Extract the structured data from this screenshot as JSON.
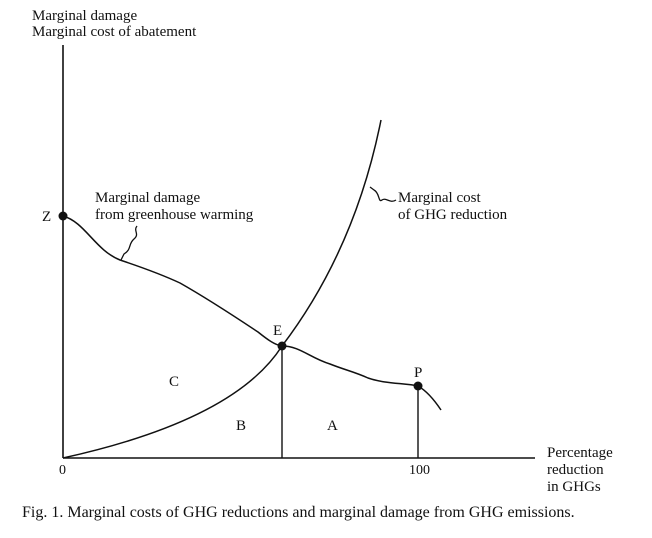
{
  "y_axis_label": [
    "Marginal damage",
    "Marginal cost of abatement"
  ],
  "x_axis_label": [
    "Percentage",
    "reduction",
    "in GHGs"
  ],
  "x_ticks": [
    "0",
    "100"
  ],
  "curves": {
    "damage_label": [
      "Marginal damage",
      "from greenhouse warming"
    ],
    "cost_label": [
      "Marginal cost",
      "of GHG reduction"
    ]
  },
  "points": {
    "z": "Z",
    "e": "E",
    "p": "P"
  },
  "regions": {
    "a": "A",
    "b": "B",
    "c": "C"
  },
  "caption": "Fig. 1. Marginal costs of GHG reductions and marginal damage from GHG emissions.",
  "colors": {
    "ink": "#111111",
    "background": "#ffffff"
  }
}
